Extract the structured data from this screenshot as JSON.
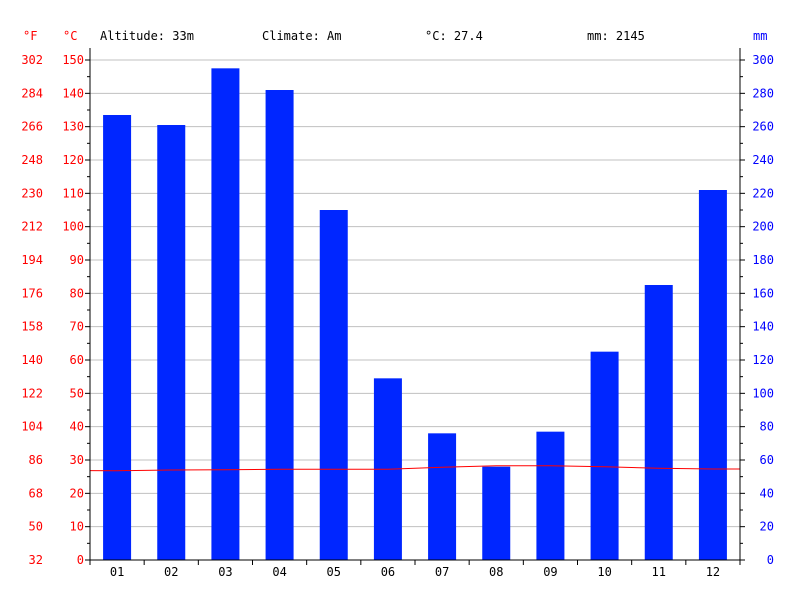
{
  "header": {
    "altitude": "Altitude: 33m",
    "climate": "Climate: Am",
    "temp": "°C: 27.4",
    "precip": "mm: 2145"
  },
  "axes": {
    "fahrenheit_unit": "°F",
    "celsius_unit": "°C",
    "precip_unit": "mm",
    "celsius_ticks": [
      "0",
      "10",
      "20",
      "30",
      "40",
      "50",
      "60",
      "70",
      "80",
      "90",
      "100",
      "110",
      "120",
      "130",
      "140",
      "150"
    ],
    "fahrenheit_ticks": [
      "32",
      "50",
      "68",
      "86",
      "104",
      "122",
      "140",
      "158",
      "176",
      "194",
      "212",
      "230",
      "248",
      "266",
      "284",
      "302"
    ],
    "mm_ticks": [
      "0",
      "20",
      "40",
      "60",
      "80",
      "100",
      "120",
      "140",
      "160",
      "180",
      "200",
      "220",
      "240",
      "260",
      "280",
      "300"
    ]
  },
  "colors": {
    "temp_axis": "#ff0000",
    "precip_axis": "#0000ff",
    "bars": "#0026ff",
    "temp_line": "#ff0000",
    "grid": "#c0c0c0"
  },
  "chart_data": {
    "type": "bar",
    "categories": [
      "01",
      "02",
      "03",
      "04",
      "05",
      "06",
      "07",
      "08",
      "09",
      "10",
      "11",
      "12"
    ],
    "series": [
      {
        "type": "bar",
        "axis": "mm",
        "values": [
          267,
          261,
          295,
          282,
          210,
          109,
          76,
          56,
          77,
          125,
          165,
          222
        ]
      },
      {
        "type": "line",
        "axis": "celsius",
        "values": [
          26.8,
          27.0,
          27.1,
          27.2,
          27.2,
          27.2,
          27.8,
          28.3,
          28.3,
          28.0,
          27.5,
          27.3
        ]
      }
    ],
    "celsius_range": [
      0,
      150
    ],
    "mm_range": [
      0,
      300
    ],
    "fahrenheit_range": [
      32,
      302
    ],
    "grid": true
  }
}
